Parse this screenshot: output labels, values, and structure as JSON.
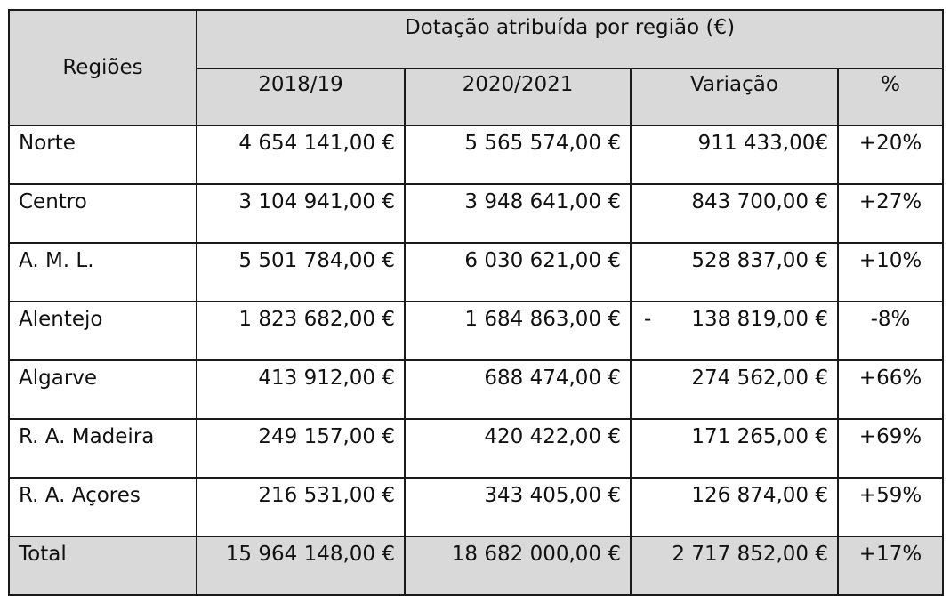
{
  "table": {
    "header": {
      "regions_label": "Regiões",
      "group_label": "Dotação atribuída por região (€)",
      "col_2018": "2018/19",
      "col_2020": "2020/2021",
      "col_var": "Variação",
      "col_pct": "%"
    },
    "rows": [
      {
        "region": "Norte",
        "v2018": "4 654 141,00 €",
        "v2020": "5 565 574,00 €",
        "var_sign": "",
        "var": "911 433,00€",
        "pct": "+20%"
      },
      {
        "region": "Centro",
        "v2018": "3 104 941,00 €",
        "v2020": "3 948 641,00 €",
        "var_sign": "",
        "var": "843 700,00 €",
        "pct": "+27%"
      },
      {
        "region": "A. M. L.",
        "v2018": "5 501 784,00 €",
        "v2020": "6 030 621,00 €",
        "var_sign": "",
        "var": "528 837,00 €",
        "pct": "+10%"
      },
      {
        "region": "Alentejo",
        "v2018": "1 823 682,00 €",
        "v2020": "1 684 863,00 €",
        "var_sign": "-",
        "var": "138 819,00 €",
        "pct": "-8%"
      },
      {
        "region": "Algarve",
        "v2018": "413 912,00 €",
        "v2020": "688 474,00 €",
        "var_sign": "",
        "var": "274 562,00 €",
        "pct": "+66%"
      },
      {
        "region": "R. A. Madeira",
        "v2018": "249 157,00 €",
        "v2020": "420 422,00 €",
        "var_sign": "",
        "var": "171 265,00 €",
        "pct": "+69%"
      },
      {
        "region": "R. A. Açores",
        "v2018": "216 531,00 €",
        "v2020": "343 405,00 €",
        "var_sign": "",
        "var": "126 874,00 €",
        "pct": "+59%"
      }
    ],
    "total": {
      "region": "Total",
      "v2018": "15 964 148,00 €",
      "v2020": "18 682 000,00 €",
      "var": "2 717 852,00 €",
      "pct": "+17%"
    }
  }
}
